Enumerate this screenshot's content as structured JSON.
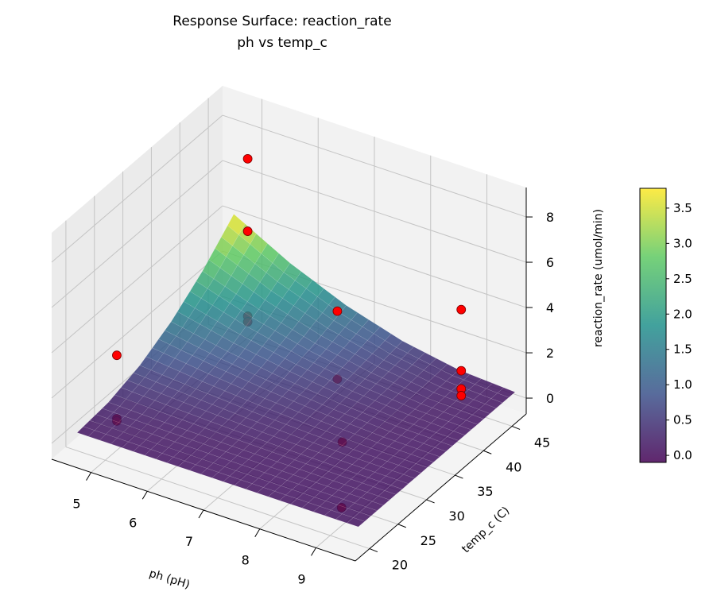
{
  "chart_data": {
    "type": "surface",
    "title": "Response Surface: reaction_rate",
    "subtitle": "ph vs temp_c",
    "xlabel": "ph (pH)",
    "ylabel": "temp_c (C)",
    "xlim": [
      4.3,
      9.7
    ],
    "ylim": [
      17.5,
      47.5
    ],
    "zlim": [
      -0.7,
      9.3
    ],
    "xticks": [
      "5",
      "6",
      "7",
      "8",
      "9"
    ],
    "yticks": [
      "20",
      "25",
      "30",
      "35",
      "40",
      "45"
    ],
    "zticks": [
      "0",
      "2",
      "4",
      "6",
      "8"
    ],
    "grid": true,
    "colormap": "viridis",
    "colormap_stops": [
      "#440154",
      "#3b528b",
      "#21918c",
      "#5ec962",
      "#fde725"
    ],
    "colorbar": {
      "label": "reaction_rate (umol/min)",
      "range": [
        -0.1,
        3.78
      ],
      "ticks": [
        "0.0",
        "0.5",
        "1.0",
        "1.5",
        "2.0",
        "2.5",
        "3.0",
        "3.5"
      ],
      "placement": "right"
    },
    "surface": {
      "x": [
        4.5,
        5.5,
        6.5,
        7.5,
        8.5,
        9.5
      ],
      "y": [
        20,
        25.5,
        31,
        36.5,
        42,
        47.5
      ],
      "z": [
        [
          0.1,
          0.25,
          0.69,
          1.43,
          2.47,
          3.8
        ],
        [
          0.1,
          0.19,
          0.48,
          0.95,
          1.62,
          2.47
        ],
        [
          0.1,
          0.15,
          0.31,
          0.58,
          0.95,
          1.43
        ],
        [
          0.1,
          0.12,
          0.2,
          0.31,
          0.48,
          0.69
        ],
        [
          0.1,
          0.11,
          0.12,
          0.15,
          0.19,
          0.25
        ],
        [
          0.1,
          0.1,
          0.1,
          0.1,
          0.1,
          0.1
        ]
      ]
    },
    "points": {
      "color": "#ff0000",
      "data": [
        [
          4.8,
          24,
          2.9
        ],
        [
          4.8,
          24,
          0.1
        ],
        [
          4.8,
          24,
          0.0
        ],
        [
          5,
          45,
          7.2
        ],
        [
          5,
          45,
          4.0
        ],
        [
          5,
          45,
          0.25
        ],
        [
          5,
          45,
          0.0
        ],
        [
          7,
          41,
          3.0
        ],
        [
          7,
          41,
          0.0
        ],
        [
          8,
          32,
          0.0
        ],
        [
          9,
          22,
          0.1
        ],
        [
          9,
          43,
          4.3
        ],
        [
          9,
          43,
          1.6
        ],
        [
          9,
          43,
          0.8
        ],
        [
          9,
          43,
          0.5
        ]
      ]
    }
  }
}
